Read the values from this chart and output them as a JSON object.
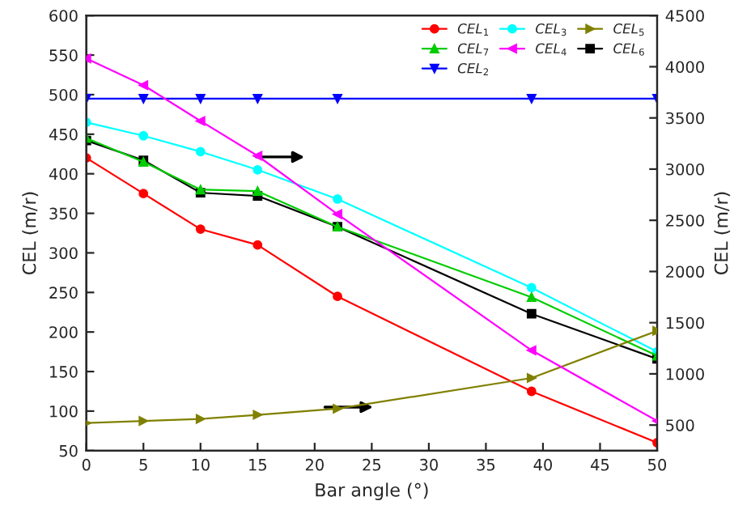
{
  "chart_data": {
    "type": "line",
    "xlabel": "Bar angle (°)",
    "ylabel": "CEL (m/r)",
    "y2label": "CEL (m/r)",
    "x": [
      0,
      5,
      10,
      15,
      22,
      39,
      50
    ],
    "series": [
      {
        "name": "CEL$_{1}$",
        "color": "#ff0000",
        "marker": "circle",
        "values": [
          420,
          375,
          330,
          310,
          245,
          125,
          60
        ]
      },
      {
        "name": "CEL$_{7}$",
        "color": "#00cc00",
        "marker": "triangle",
        "values": [
          445,
          415,
          380,
          378,
          333,
          244,
          170
        ]
      },
      {
        "name": "CEL$_{2}$",
        "color": "#0000ff",
        "marker": "triangle_down",
        "values": [
          495,
          495,
          495,
          495,
          495,
          495,
          495
        ]
      },
      {
        "name": "CEL$_{3}$",
        "color": "#00ffff",
        "marker": "circle",
        "values": [
          465,
          448,
          428,
          405,
          368,
          256,
          175
        ]
      },
      {
        "name": "CEL$_{4}$",
        "color": "#ff00ff",
        "marker": "triangle_left",
        "axis": "y2",
        "values": [
          4080,
          3820,
          3470,
          3130,
          2560,
          1230,
          540
        ]
      },
      {
        "name": "CEL$_{5}$",
        "color": "#808000",
        "marker": "triangle_right",
        "axis": "y2",
        "values": [
          520,
          540,
          560,
          600,
          660,
          960,
          1420
        ]
      },
      {
        "name": "CEL$_{6}$",
        "color": "#000000",
        "marker": "square",
        "values": [
          442,
          417,
          376,
          372,
          333,
          223,
          166
        ]
      }
    ],
    "xlim": [
      0,
      50
    ],
    "xticks": [
      0,
      5,
      10,
      15,
      20,
      25,
      30,
      35,
      40,
      45,
      50
    ],
    "ylim": [
      50,
      600
    ],
    "yticks": [
      50,
      100,
      150,
      200,
      250,
      300,
      350,
      400,
      450,
      500,
      550,
      600
    ],
    "y2lim": [
      250,
      4500
    ],
    "y2ticks": [
      500,
      1000,
      1500,
      2000,
      2500,
      3000,
      3500,
      4000,
      4500
    ],
    "grid": false,
    "legend": "top right",
    "line_style": "solid"
  }
}
